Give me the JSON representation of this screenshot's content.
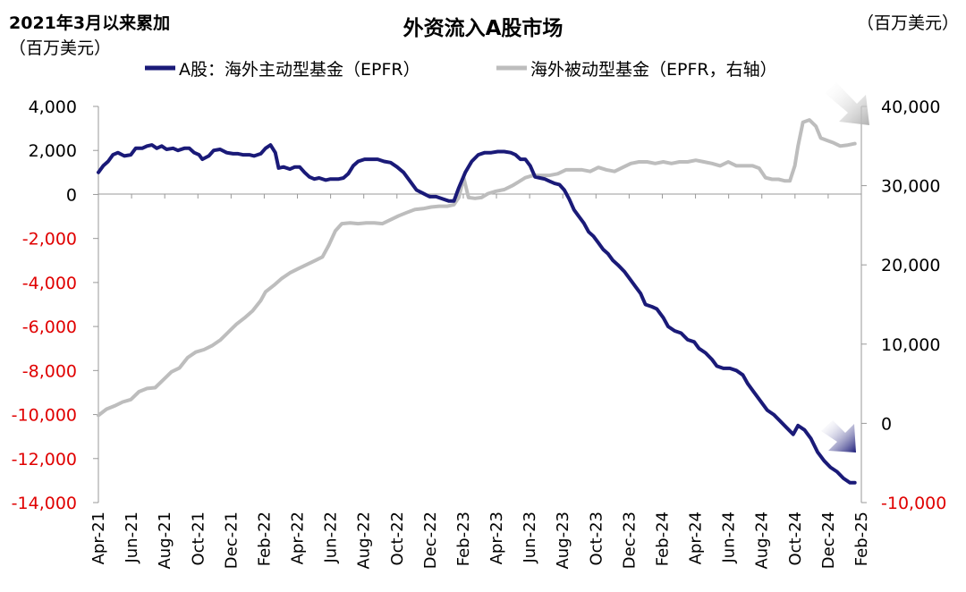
{
  "chart_data": {
    "type": "line",
    "title": "外资流入A股市场",
    "left_axis": {
      "label_line1": "2021年3月以来累加",
      "label_line2": "（百万美元）",
      "ylim": [
        -14000,
        4000
      ],
      "ticks": [
        4000,
        2000,
        0,
        -2000,
        -4000,
        -6000,
        -8000,
        -10000,
        -12000,
        -14000
      ],
      "tick_labels": [
        "4,000",
        "2,000",
        "0",
        "-2,000",
        "-4,000",
        "-6,000",
        "-8,000",
        "-10,000",
        "-12,000",
        "-14,000"
      ]
    },
    "right_axis": {
      "label": "（百万美元）",
      "ylim": [
        -10000,
        40000
      ],
      "ticks": [
        40000,
        30000,
        20000,
        10000,
        0,
        -10000
      ],
      "tick_labels": [
        "40,000",
        "30,000",
        "20,000",
        "10,000",
        "0",
        "-10,000"
      ]
    },
    "x_tick_labels": [
      "Apr-21",
      "Jun-21",
      "Aug-21",
      "Oct-21",
      "Dec-21",
      "Feb-22",
      "Apr-22",
      "Jun-22",
      "Aug-22",
      "Oct-22",
      "Dec-22",
      "Feb-23",
      "Apr-23",
      "Jun-23",
      "Aug-23",
      "Oct-23",
      "Dec-23",
      "Feb-24",
      "Apr-24",
      "Jun-24",
      "Aug-24",
      "Oct-24",
      "Dec-24",
      "Feb-25"
    ],
    "x_range_months": [
      0,
      47
    ],
    "legend_position": "top",
    "grid": false,
    "colors": {
      "active": "#1a1a78",
      "passive": "#bdbdbd",
      "negative_tick": "#e00000",
      "positive_tick": "#000000"
    },
    "series": [
      {
        "name": "A股：海外主动型基金（EPFR）",
        "axis": "left",
        "points": [
          [
            0,
            1000
          ],
          [
            0.3,
            1300
          ],
          [
            0.6,
            1500
          ],
          [
            0.9,
            1800
          ],
          [
            1.2,
            1900
          ],
          [
            1.6,
            1750
          ],
          [
            2,
            1800
          ],
          [
            2.3,
            2100
          ],
          [
            2.7,
            2100
          ],
          [
            3,
            2200
          ],
          [
            3.3,
            2250
          ],
          [
            3.6,
            2100
          ],
          [
            3.9,
            2200
          ],
          [
            4.2,
            2050
          ],
          [
            4.6,
            2100
          ],
          [
            4.9,
            2000
          ],
          [
            5.3,
            2100
          ],
          [
            5.6,
            2100
          ],
          [
            5.9,
            1900
          ],
          [
            6.2,
            1800
          ],
          [
            6.4,
            1600
          ],
          [
            6.8,
            1750
          ],
          [
            7.1,
            2000
          ],
          [
            7.5,
            2050
          ],
          [
            7.9,
            1900
          ],
          [
            8.3,
            1850
          ],
          [
            8.6,
            1850
          ],
          [
            8.9,
            1800
          ],
          [
            9.3,
            1800
          ],
          [
            9.6,
            1750
          ],
          [
            10,
            1850
          ],
          [
            10.3,
            2100
          ],
          [
            10.6,
            2250
          ],
          [
            10.9,
            1900
          ],
          [
            11.1,
            1200
          ],
          [
            11.4,
            1250
          ],
          [
            11.8,
            1150
          ],
          [
            12.1,
            1250
          ],
          [
            12.4,
            1250
          ],
          [
            12.7,
            1000
          ],
          [
            13,
            800
          ],
          [
            13.3,
            700
          ],
          [
            13.6,
            750
          ],
          [
            14,
            650
          ],
          [
            14.3,
            700
          ],
          [
            14.8,
            700
          ],
          [
            15.1,
            750
          ],
          [
            15.4,
            950
          ],
          [
            15.7,
            1300
          ],
          [
            16,
            1500
          ],
          [
            16.4,
            1600
          ],
          [
            16.8,
            1600
          ],
          [
            17.2,
            1600
          ],
          [
            17.6,
            1500
          ],
          [
            18,
            1450
          ],
          [
            18.4,
            1250
          ],
          [
            18.8,
            1000
          ],
          [
            19.2,
            600
          ],
          [
            19.6,
            200
          ],
          [
            20,
            50
          ],
          [
            20.4,
            -100
          ],
          [
            20.8,
            -100
          ],
          [
            21.2,
            -200
          ],
          [
            21.6,
            -300
          ],
          [
            21.9,
            -300
          ],
          [
            22.2,
            300
          ],
          [
            22.6,
            1000
          ],
          [
            23,
            1500
          ],
          [
            23.4,
            1800
          ],
          [
            23.8,
            1900
          ],
          [
            24.2,
            1900
          ],
          [
            24.6,
            1950
          ],
          [
            25,
            1950
          ],
          [
            25.4,
            1900
          ],
          [
            25.7,
            1800
          ],
          [
            26,
            1600
          ],
          [
            26.3,
            1600
          ],
          [
            26.6,
            1300
          ],
          [
            26.9,
            800
          ],
          [
            27.2,
            750
          ],
          [
            27.5,
            700
          ],
          [
            27.8,
            600
          ],
          [
            28.1,
            500
          ],
          [
            28.4,
            450
          ],
          [
            28.7,
            200
          ],
          [
            29,
            -200
          ],
          [
            29.3,
            -700
          ],
          [
            29.6,
            -1000
          ],
          [
            29.9,
            -1300
          ],
          [
            30.2,
            -1700
          ],
          [
            30.5,
            -1900
          ],
          [
            30.8,
            -2200
          ],
          [
            31.1,
            -2500
          ],
          [
            31.4,
            -2700
          ],
          [
            31.7,
            -3000
          ],
          [
            32,
            -3200
          ],
          [
            32.4,
            -3500
          ],
          [
            32.8,
            -3900
          ],
          [
            33.1,
            -4200
          ],
          [
            33.4,
            -4500
          ],
          [
            33.7,
            -5000
          ],
          [
            34.1,
            -5100
          ],
          [
            34.4,
            -5200
          ],
          [
            34.8,
            -5600
          ],
          [
            35.1,
            -6000
          ],
          [
            35.5,
            -6200
          ],
          [
            35.9,
            -6300
          ],
          [
            36.3,
            -6600
          ],
          [
            36.7,
            -6700
          ],
          [
            37,
            -7000
          ],
          [
            37.4,
            -7200
          ],
          [
            37.8,
            -7500
          ],
          [
            38.1,
            -7800
          ],
          [
            38.5,
            -7900
          ],
          [
            38.9,
            -7900
          ],
          [
            39.3,
            -8000
          ],
          [
            39.7,
            -8200
          ],
          [
            40,
            -8600
          ],
          [
            40.4,
            -9000
          ],
          [
            40.8,
            -9400
          ],
          [
            41.2,
            -9800
          ],
          [
            41.6,
            -10000
          ],
          [
            42,
            -10300
          ],
          [
            42.4,
            -10600
          ],
          [
            42.8,
            -10900
          ],
          [
            43.1,
            -10500
          ],
          [
            43.5,
            -10700
          ],
          [
            43.9,
            -11100
          ],
          [
            44.3,
            -11700
          ],
          [
            44.7,
            -12100
          ],
          [
            45.1,
            -12400
          ],
          [
            45.5,
            -12600
          ],
          [
            45.9,
            -12900
          ],
          [
            46.3,
            -13100
          ],
          [
            46.6,
            -13100
          ]
        ]
      },
      {
        "name": "海外被动型基金（EPFR，右轴）",
        "axis": "right",
        "points": [
          [
            0,
            1000
          ],
          [
            0.5,
            1800
          ],
          [
            1,
            2200
          ],
          [
            1.5,
            2700
          ],
          [
            2,
            3000
          ],
          [
            2.5,
            4000
          ],
          [
            3,
            4400
          ],
          [
            3.5,
            4500
          ],
          [
            4,
            5500
          ],
          [
            4.5,
            6500
          ],
          [
            5,
            7000
          ],
          [
            5.5,
            8300
          ],
          [
            6,
            9000
          ],
          [
            6.5,
            9300
          ],
          [
            7,
            9800
          ],
          [
            7.5,
            10500
          ],
          [
            8,
            11500
          ],
          [
            8.5,
            12500
          ],
          [
            9,
            13300
          ],
          [
            9.5,
            14200
          ],
          [
            10,
            15500
          ],
          [
            10.3,
            16600
          ],
          [
            10.8,
            17400
          ],
          [
            11.3,
            18300
          ],
          [
            11.8,
            19000
          ],
          [
            12.3,
            19500
          ],
          [
            12.8,
            20000
          ],
          [
            13.3,
            20500
          ],
          [
            13.8,
            21000
          ],
          [
            14.2,
            22500
          ],
          [
            14.6,
            24300
          ],
          [
            15,
            25200
          ],
          [
            15.5,
            25300
          ],
          [
            16,
            25200
          ],
          [
            16.5,
            25300
          ],
          [
            17,
            25300
          ],
          [
            17.5,
            25200
          ],
          [
            18,
            25700
          ],
          [
            18.5,
            26200
          ],
          [
            19,
            26600
          ],
          [
            19.5,
            27000
          ],
          [
            20,
            27100
          ],
          [
            20.5,
            27300
          ],
          [
            21,
            27400
          ],
          [
            21.5,
            27400
          ],
          [
            21.9,
            27600
          ],
          [
            22.2,
            28500
          ],
          [
            22.5,
            31000
          ],
          [
            22.8,
            28500
          ],
          [
            23.2,
            28400
          ],
          [
            23.6,
            28500
          ],
          [
            24,
            29000
          ],
          [
            24.5,
            29300
          ],
          [
            25,
            29500
          ],
          [
            25.5,
            30000
          ],
          [
            25.9,
            30500
          ],
          [
            26.3,
            31000
          ],
          [
            26.8,
            31300
          ],
          [
            27.3,
            31300
          ],
          [
            27.8,
            31300
          ],
          [
            28.3,
            31500
          ],
          [
            28.8,
            32000
          ],
          [
            29.3,
            32000
          ],
          [
            29.8,
            32000
          ],
          [
            30.3,
            31800
          ],
          [
            30.8,
            32300
          ],
          [
            31.3,
            32000
          ],
          [
            31.8,
            31800
          ],
          [
            32.3,
            32300
          ],
          [
            32.8,
            32800
          ],
          [
            33.3,
            33000
          ],
          [
            33.8,
            33000
          ],
          [
            34.3,
            32800
          ],
          [
            34.8,
            33000
          ],
          [
            35.3,
            32800
          ],
          [
            35.8,
            33000
          ],
          [
            36.3,
            33000
          ],
          [
            36.8,
            33200
          ],
          [
            37.3,
            33000
          ],
          [
            37.8,
            32800
          ],
          [
            38.3,
            32500
          ],
          [
            38.8,
            33000
          ],
          [
            39.3,
            32500
          ],
          [
            39.8,
            32500
          ],
          [
            40.3,
            32500
          ],
          [
            40.7,
            32200
          ],
          [
            41.1,
            31000
          ],
          [
            41.5,
            30800
          ],
          [
            41.9,
            30800
          ],
          [
            42.3,
            30600
          ],
          [
            42.6,
            30600
          ],
          [
            42.9,
            32500
          ],
          [
            43.1,
            35000
          ],
          [
            43.4,
            38000
          ],
          [
            43.8,
            38300
          ],
          [
            44.2,
            37500
          ],
          [
            44.5,
            36000
          ],
          [
            44.9,
            35700
          ],
          [
            45.3,
            35400
          ],
          [
            45.7,
            35000
          ],
          [
            46.1,
            35100
          ],
          [
            46.6,
            35300
          ]
        ]
      }
    ]
  }
}
